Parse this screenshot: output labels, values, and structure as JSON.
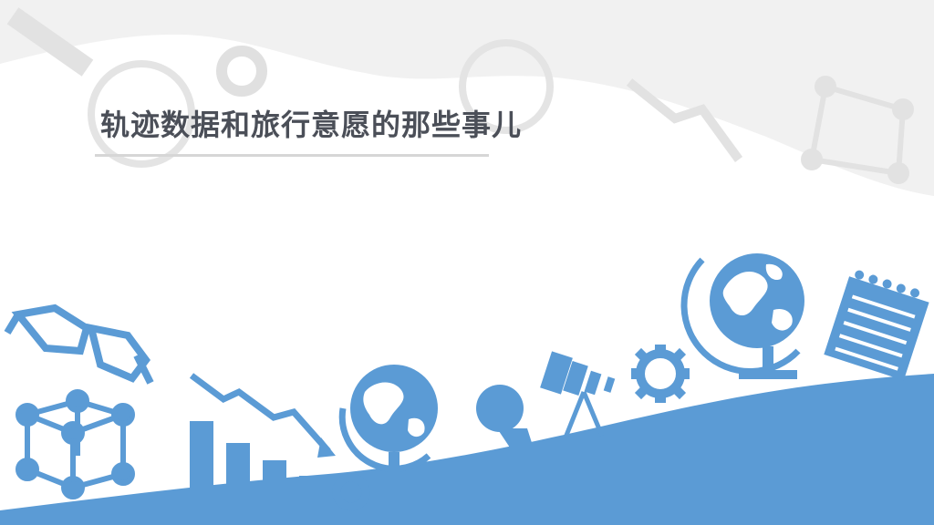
{
  "slide": {
    "title": "轨迹数据和旅行意愿的那些事儿"
  },
  "colors": {
    "accent_blue": "#5b9bd5",
    "watermark_gray": "#ececec",
    "title_text": "#4b4f58",
    "rule_gray": "#d6d6d6"
  },
  "icons": [
    "eyeglasses-icon",
    "molecule-cube-icon",
    "bar-chart-decline-icon",
    "globe-icon",
    "gear-icon",
    "magnifier-icon",
    "telescope-icon",
    "notepad-icon"
  ]
}
